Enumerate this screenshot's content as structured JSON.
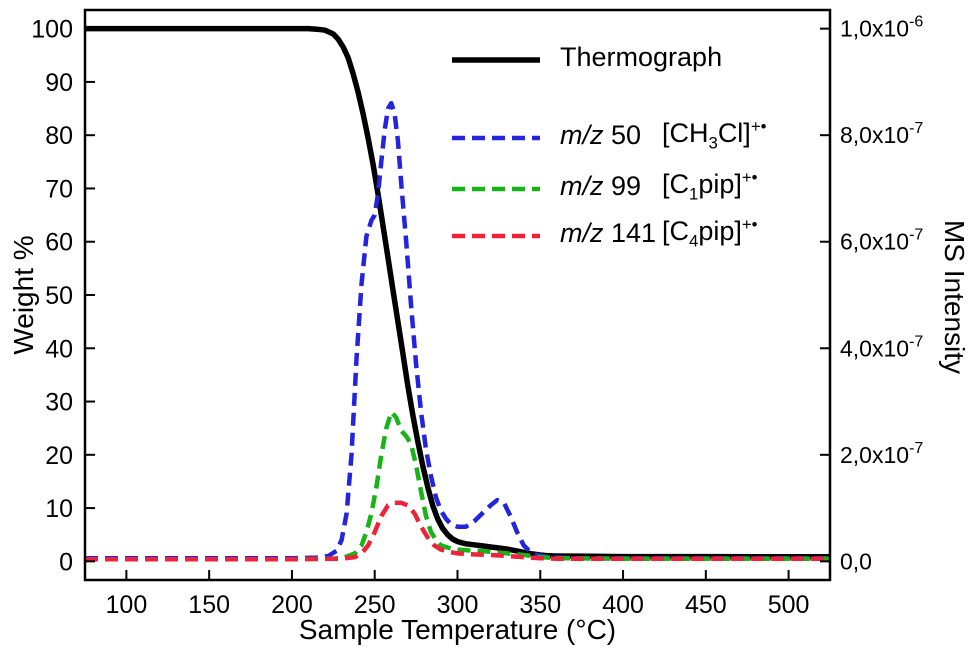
{
  "chart_data": {
    "type": "line",
    "title": "",
    "xlabel": "Sample Temperature (°C)",
    "ylabel_left": "Weight %",
    "ylabel_right": "MS Intensity",
    "xlim": [
      75,
      525
    ],
    "x_ticks": [
      100,
      150,
      200,
      250,
      300,
      350,
      400,
      450,
      500
    ],
    "ylim_left": [
      -3.5,
      103.5
    ],
    "y_ticks_left": [
      0,
      10,
      20,
      30,
      40,
      50,
      60,
      70,
      80,
      90,
      100
    ],
    "right_axis_note": "right scale in units of 1e-7, aligned so 1.0e-6 = 100 wt%",
    "y_ticks_right": [
      {
        "v": 0,
        "label": [
          {
            "t": "0,0"
          }
        ]
      },
      {
        "v": 2,
        "label": [
          {
            "t": "2,0x10"
          },
          {
            "t": "-7",
            "s": "sup"
          }
        ]
      },
      {
        "v": 4,
        "label": [
          {
            "t": "4,0x10"
          },
          {
            "t": "-7",
            "s": "sup"
          }
        ]
      },
      {
        "v": 6,
        "label": [
          {
            "t": "6,0x10"
          },
          {
            "t": "-7",
            "s": "sup"
          }
        ]
      },
      {
        "v": 8,
        "label": [
          {
            "t": "8,0x10"
          },
          {
            "t": "-7",
            "s": "sup"
          }
        ]
      },
      {
        "v": 10,
        "label": [
          {
            "t": "1,0x10"
          },
          {
            "t": "-6",
            "s": "sup"
          }
        ]
      }
    ],
    "grid": false,
    "legend_position": "upper-middle-right",
    "series": [
      {
        "name": "Thermograph",
        "axis": "left",
        "color": "#000000",
        "style": "solid",
        "width": 5.5,
        "points": [
          [
            75,
            100
          ],
          [
            120,
            100
          ],
          [
            160,
            100
          ],
          [
            200,
            100
          ],
          [
            210,
            100
          ],
          [
            215,
            99.9
          ],
          [
            220,
            99.7
          ],
          [
            225,
            99
          ],
          [
            228,
            98
          ],
          [
            231,
            96.5
          ],
          [
            234,
            94.5
          ],
          [
            237,
            91.5
          ],
          [
            240,
            88
          ],
          [
            243,
            84
          ],
          [
            246,
            79.5
          ],
          [
            249,
            74.5
          ],
          [
            252,
            69
          ],
          [
            255,
            63
          ],
          [
            258,
            57
          ],
          [
            261,
            51
          ],
          [
            264,
            45
          ],
          [
            267,
            39
          ],
          [
            270,
            33
          ],
          [
            273,
            27.5
          ],
          [
            276,
            22.5
          ],
          [
            279,
            18
          ],
          [
            282,
            14
          ],
          [
            285,
            10.5
          ],
          [
            288,
            8
          ],
          [
            291,
            6.2
          ],
          [
            294,
            5
          ],
          [
            297,
            4.2
          ],
          [
            300,
            3.7
          ],
          [
            305,
            3.3
          ],
          [
            310,
            3.1
          ],
          [
            315,
            2.9
          ],
          [
            320,
            2.7
          ],
          [
            325,
            2.5
          ],
          [
            330,
            2.3
          ],
          [
            335,
            2
          ],
          [
            340,
            1.7
          ],
          [
            345,
            1.4
          ],
          [
            350,
            1.2
          ],
          [
            355,
            1.05
          ],
          [
            360,
            1
          ],
          [
            380,
            0.95
          ],
          [
            400,
            0.9
          ],
          [
            450,
            0.9
          ],
          [
            500,
            0.85
          ],
          [
            525,
            0.85
          ]
        ]
      },
      {
        "name": "m/z 50",
        "axis": "right",
        "color": "#2424dd",
        "style": "dashed",
        "width": 4.5,
        "points": [
          [
            75,
            0.06
          ],
          [
            150,
            0.06
          ],
          [
            200,
            0.06
          ],
          [
            215,
            0.07
          ],
          [
            222,
            0.1
          ],
          [
            227,
            0.2
          ],
          [
            230,
            0.4
          ],
          [
            233,
            0.9
          ],
          [
            236,
            2
          ],
          [
            239,
            3.8
          ],
          [
            242,
            5.2
          ],
          [
            245,
            6.1
          ],
          [
            248,
            6.4
          ],
          [
            250,
            6.5
          ],
          [
            252,
            6.9
          ],
          [
            254,
            7.5
          ],
          [
            256,
            8.1
          ],
          [
            258,
            8.5
          ],
          [
            260,
            8.6
          ],
          [
            262,
            8.4
          ],
          [
            264,
            7.9
          ],
          [
            266,
            7.1
          ],
          [
            269,
            6
          ],
          [
            272,
            4.8
          ],
          [
            275,
            3.7
          ],
          [
            278,
            2.8
          ],
          [
            281,
            2.1
          ],
          [
            284,
            1.6
          ],
          [
            287,
            1.2
          ],
          [
            290,
            0.95
          ],
          [
            293,
            0.8
          ],
          [
            296,
            0.7
          ],
          [
            300,
            0.65
          ],
          [
            305,
            0.65
          ],
          [
            310,
            0.75
          ],
          [
            315,
            0.9
          ],
          [
            320,
            1.05
          ],
          [
            324,
            1.15
          ],
          [
            328,
            1.1
          ],
          [
            332,
            0.85
          ],
          [
            336,
            0.55
          ],
          [
            340,
            0.3
          ],
          [
            344,
            0.18
          ],
          [
            348,
            0.12
          ],
          [
            355,
            0.08
          ],
          [
            370,
            0.06
          ],
          [
            400,
            0.06
          ],
          [
            450,
            0.06
          ],
          [
            525,
            0.06
          ]
        ]
      },
      {
        "name": "m/z 99",
        "axis": "right",
        "color": "#17b317",
        "style": "dashed",
        "width": 4.5,
        "points": [
          [
            75,
            0.04
          ],
          [
            150,
            0.04
          ],
          [
            200,
            0.04
          ],
          [
            225,
            0.05
          ],
          [
            232,
            0.08
          ],
          [
            238,
            0.15
          ],
          [
            242,
            0.3
          ],
          [
            245,
            0.55
          ],
          [
            248,
            0.9
          ],
          [
            251,
            1.4
          ],
          [
            254,
            2
          ],
          [
            257,
            2.5
          ],
          [
            260,
            2.8
          ],
          [
            263,
            2.7
          ],
          [
            266,
            2.45
          ],
          [
            269,
            2.35
          ],
          [
            272,
            2.2
          ],
          [
            275,
            1.8
          ],
          [
            278,
            1.3
          ],
          [
            281,
            0.85
          ],
          [
            284,
            0.55
          ],
          [
            287,
            0.4
          ],
          [
            290,
            0.3
          ],
          [
            295,
            0.25
          ],
          [
            300,
            0.22
          ],
          [
            310,
            0.2
          ],
          [
            320,
            0.18
          ],
          [
            330,
            0.15
          ],
          [
            340,
            0.12
          ],
          [
            350,
            0.08
          ],
          [
            360,
            0.06
          ],
          [
            400,
            0.05
          ],
          [
            450,
            0.05
          ],
          [
            525,
            0.05
          ]
        ]
      },
      {
        "name": "m/z 141",
        "axis": "right",
        "color": "#ee2238",
        "style": "dashed",
        "width": 4.5,
        "points": [
          [
            75,
            0.04
          ],
          [
            150,
            0.04
          ],
          [
            200,
            0.04
          ],
          [
            230,
            0.05
          ],
          [
            238,
            0.08
          ],
          [
            242,
            0.15
          ],
          [
            246,
            0.3
          ],
          [
            250,
            0.55
          ],
          [
            254,
            0.85
          ],
          [
            258,
            1.05
          ],
          [
            262,
            1.1
          ],
          [
            266,
            1.1
          ],
          [
            270,
            1.05
          ],
          [
            274,
            0.9
          ],
          [
            278,
            0.65
          ],
          [
            282,
            0.45
          ],
          [
            286,
            0.3
          ],
          [
            290,
            0.22
          ],
          [
            295,
            0.18
          ],
          [
            300,
            0.15
          ],
          [
            310,
            0.13
          ],
          [
            320,
            0.12
          ],
          [
            330,
            0.1
          ],
          [
            340,
            0.08
          ],
          [
            350,
            0.06
          ],
          [
            360,
            0.05
          ],
          [
            400,
            0.05
          ],
          [
            450,
            0.05
          ],
          [
            525,
            0.05
          ]
        ]
      }
    ]
  },
  "legend": {
    "entries": [
      {
        "series": 0,
        "label": [
          {
            "t": "Thermograph"
          }
        ]
      },
      {
        "series": 1,
        "label": [
          {
            "t": "m/z",
            "s": "i"
          },
          {
            "t": " 50"
          }
        ],
        "formula": [
          {
            "t": "[CH"
          },
          {
            "t": "3",
            "s": "sub"
          },
          {
            "t": "Cl]"
          },
          {
            "t": "+•",
            "s": "sup"
          }
        ]
      },
      {
        "series": 2,
        "label": [
          {
            "t": "m/z",
            "s": "i"
          },
          {
            "t": " 99"
          }
        ],
        "formula": [
          {
            "t": "[C"
          },
          {
            "t": "1",
            "s": "sub"
          },
          {
            "t": "pip]"
          },
          {
            "t": "+•",
            "s": "sup"
          }
        ]
      },
      {
        "series": 3,
        "label": [
          {
            "t": "m/z",
            "s": "i"
          },
          {
            "t": " 141"
          }
        ],
        "formula": [
          {
            "t": "[C"
          },
          {
            "t": "4",
            "s": "sub"
          },
          {
            "t": "pip]"
          },
          {
            "t": "+•",
            "s": "sup"
          }
        ]
      }
    ]
  }
}
